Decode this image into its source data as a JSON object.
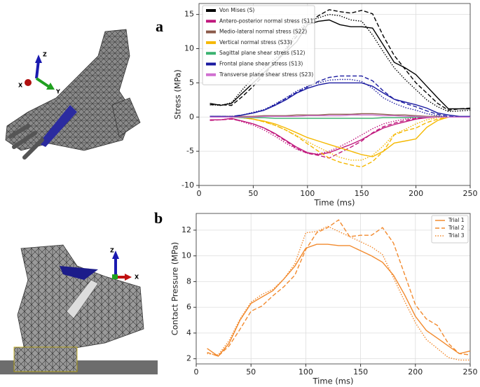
{
  "panels": [
    "a",
    "b"
  ],
  "images": [
    {
      "axes": [
        "Z",
        "Y",
        "X"
      ]
    },
    {
      "axes": [
        "Z",
        "X"
      ]
    }
  ],
  "chart_data": [
    {
      "type": "line",
      "xlabel": "Time (ms)",
      "ylabel": "Stress (MPa)",
      "x": [
        10,
        20,
        30,
        40,
        50,
        60,
        70,
        80,
        90,
        100,
        110,
        120,
        130,
        140,
        150,
        160,
        170,
        180,
        190,
        200,
        210,
        220,
        230,
        240,
        250
      ],
      "xlim": [
        0,
        250
      ],
      "xticks": [
        0,
        50,
        100,
        150,
        200,
        250
      ],
      "ylim": [
        -10,
        16.6
      ],
      "yticks": [
        -10,
        -5,
        0,
        5,
        10,
        15
      ],
      "grid": true,
      "legend": "upper-left",
      "trial_linestyles": [
        "solid",
        "dashed",
        "dotted"
      ],
      "series": [
        {
          "name": "Von Mises (S)",
          "color": "#000000",
          "trials": [
            [
              2.0,
              1.7,
              2.0,
              3.5,
              5.0,
              6.5,
              8.0,
              9.5,
              11.0,
              13.5,
              14.0,
              14.2,
              13.5,
              13.2,
              13.2,
              13.0,
              10.5,
              8.0,
              7.2,
              6.2,
              4.5,
              2.8,
              1.2,
              1.2,
              1.2
            ],
            [
              1.8,
              1.8,
              1.7,
              3.0,
              4.5,
              6.2,
              8.0,
              9.8,
              11.8,
              13.8,
              14.8,
              15.7,
              15.4,
              15.2,
              15.6,
              15.1,
              11.8,
              9.0,
              7.0,
              5.0,
              3.5,
              2.0,
              1.0,
              1.2,
              1.3
            ],
            [
              1.8,
              1.7,
              2.1,
              4.0,
              5.8,
              7.2,
              8.5,
              10.0,
              12.3,
              14.0,
              14.5,
              15.0,
              14.8,
              14.2,
              14.0,
              12.0,
              9.5,
              7.2,
              5.5,
              4.0,
              2.5,
              1.5,
              0.8,
              0.9,
              1.0
            ]
          ]
        },
        {
          "name": "Antero-posterior normal stress (S11)",
          "color": "#c0187d",
          "trials": [
            [
              -0.4,
              -0.4,
              -0.2,
              -0.6,
              -1.0,
              -1.6,
              -2.4,
              -3.4,
              -4.4,
              -5.2,
              -5.5,
              -5.2,
              -4.6,
              -4.0,
              -3.3,
              -2.4,
              -1.6,
              -1.1,
              -0.7,
              -0.3,
              -0.1,
              0,
              0,
              0,
              0
            ],
            [
              -0.5,
              -0.4,
              -0.3,
              -0.6,
              -1.0,
              -1.6,
              -2.5,
              -3.5,
              -4.6,
              -5.3,
              -5.6,
              -6.0,
              -5.2,
              -4.4,
              -3.5,
              -2.3,
              -1.4,
              -0.9,
              -0.5,
              -0.2,
              0,
              0,
              0,
              0,
              0
            ],
            [
              -0.4,
              -0.4,
              -0.2,
              -0.7,
              -1.2,
              -1.9,
              -2.8,
              -3.8,
              -4.7,
              -5.3,
              -5.4,
              -5.0,
              -4.3,
              -3.5,
              -2.6,
              -1.7,
              -1.0,
              -0.6,
              -0.3,
              -0.1,
              0,
              0,
              0,
              0,
              0
            ]
          ]
        },
        {
          "name": "Medio-lateral normal stress (S22)",
          "color": "#8b5a4a",
          "trials": [
            [
              0.1,
              0.1,
              0.1,
              0.1,
              0.1,
              0.2,
              0.2,
              0.2,
              0.3,
              0.3,
              0.3,
              0.4,
              0.4,
              0.4,
              0.5,
              0.5,
              0.4,
              0.3,
              0.3,
              0.2,
              0.1,
              0.1,
              0,
              0,
              0
            ]
          ]
        },
        {
          "name": "Vertical normal stress (S33)",
          "color": "#f5b800",
          "trials": [
            [
              0,
              0,
              0,
              -0.1,
              -0.3,
              -0.6,
              -1.0,
              -1.6,
              -2.3,
              -3.0,
              -3.5,
              -4.0,
              -4.5,
              -5.0,
              -5.5,
              -5.8,
              -5.0,
              -3.8,
              -3.5,
              -3.2,
              -1.5,
              -0.5,
              0,
              0,
              0
            ],
            [
              0,
              0,
              0,
              -0.1,
              -0.3,
              -0.7,
              -1.2,
              -1.9,
              -2.8,
              -3.9,
              -5.0,
              -6.0,
              -6.6,
              -7.0,
              -7.3,
              -6.5,
              -5.0,
              -2.6,
              -2.0,
              -1.6,
              -0.8,
              -0.3,
              0,
              0,
              0
            ],
            [
              0,
              0,
              0,
              -0.1,
              -0.3,
              -0.7,
              -1.2,
              -1.9,
              -2.7,
              -3.6,
              -4.4,
              -5.2,
              -5.9,
              -6.3,
              -6.3,
              -5.6,
              -4.2,
              -2.5,
              -1.8,
              -1.0,
              -0.4,
              -0.1,
              0,
              0,
              0
            ]
          ]
        },
        {
          "name": "Sagittal plane shear stress (S12)",
          "color": "#3cb371",
          "trials": [
            [
              0,
              0,
              0,
              -0.1,
              -0.1,
              -0.1,
              -0.2,
              -0.2,
              -0.2,
              -0.2,
              -0.2,
              -0.2,
              -0.2,
              -0.2,
              -0.2,
              -0.2,
              -0.1,
              -0.1,
              -0.1,
              0,
              0,
              0,
              0,
              0,
              0
            ]
          ]
        },
        {
          "name": "Frontal plane shear stress (S13)",
          "color": "#1a1aa0",
          "trials": [
            [
              0.1,
              0.1,
              0,
              0.3,
              0.6,
              1.0,
              1.7,
              2.5,
              3.5,
              4.2,
              4.7,
              5.0,
              5.0,
              5.0,
              5.0,
              4.5,
              3.5,
              2.6,
              2.2,
              1.8,
              1.3,
              0.6,
              0.3,
              0.1,
              0.1
            ],
            [
              0.1,
              0.1,
              0.1,
              0.3,
              0.6,
              1.0,
              1.8,
              2.7,
              3.6,
              4.4,
              5.2,
              5.8,
              6.0,
              6.0,
              6.0,
              5.3,
              3.8,
              2.6,
              2.0,
              1.5,
              0.9,
              0.4,
              0.1,
              0,
              0
            ],
            [
              0.1,
              0.1,
              0.1,
              0.3,
              0.7,
              1.1,
              1.9,
              2.8,
              3.8,
              4.5,
              5.0,
              5.4,
              5.5,
              5.5,
              5.2,
              4.2,
              2.8,
              2.0,
              1.4,
              1.0,
              0.5,
              0.2,
              0,
              0,
              0
            ]
          ]
        },
        {
          "name": "Transverse plane shear stress (S23)",
          "color": "#d070d0",
          "trials": [
            [
              0,
              0,
              0,
              0,
              0,
              0.1,
              0.1,
              0.1,
              0.1,
              0.2,
              0.2,
              0.2,
              0.2,
              0.3,
              0.3,
              0.3,
              0.2,
              0.2,
              0.1,
              0.1,
              0,
              0,
              0,
              0,
              0
            ]
          ]
        }
      ]
    },
    {
      "type": "line",
      "xlabel": "Time (ms)",
      "ylabel": "Contact Pressure (MPa)",
      "x": [
        10,
        20,
        30,
        40,
        50,
        60,
        70,
        80,
        90,
        100,
        110,
        120,
        130,
        140,
        150,
        160,
        170,
        180,
        190,
        200,
        210,
        220,
        230,
        240,
        250
      ],
      "xlim": [
        0,
        250
      ],
      "xticks": [
        0,
        50,
        100,
        150,
        200,
        250
      ],
      "ylim": [
        1.6,
        13.3
      ],
      "yticks": [
        2,
        4,
        6,
        8,
        10,
        12
      ],
      "grid": true,
      "legend": "upper-right",
      "series": [
        {
          "name": "Trial 1",
          "color": "#f28a2e",
          "linestyle": "solid",
          "values": [
            2.8,
            2.2,
            3.2,
            5.0,
            6.3,
            6.8,
            7.3,
            8.2,
            9.2,
            10.6,
            10.9,
            10.9,
            10.8,
            10.8,
            10.4,
            10.0,
            9.5,
            8.5,
            7.0,
            5.3,
            4.2,
            3.6,
            3.0,
            2.4,
            2.6
          ]
        },
        {
          "name": "Trial 2",
          "color": "#f28a2e",
          "linestyle": "dashed",
          "values": [
            2.5,
            2.2,
            3.0,
            4.3,
            5.7,
            6.1,
            6.9,
            7.6,
            8.5,
            10.5,
            11.8,
            12.2,
            12.8,
            11.5,
            11.6,
            11.6,
            12.2,
            11.0,
            8.6,
            6.2,
            5.1,
            4.6,
            3.2,
            2.4,
            2.3
          ]
        },
        {
          "name": "Trial 3",
          "color": "#f28a2e",
          "linestyle": "dotted",
          "values": [
            2.4,
            2.3,
            3.4,
            5.1,
            6.4,
            7.0,
            7.4,
            8.2,
            9.4,
            11.8,
            11.9,
            12.3,
            11.9,
            11.5,
            11.1,
            10.7,
            10.1,
            8.3,
            6.5,
            4.8,
            3.5,
            2.8,
            2.1,
            1.9,
            1.9
          ]
        }
      ]
    }
  ]
}
